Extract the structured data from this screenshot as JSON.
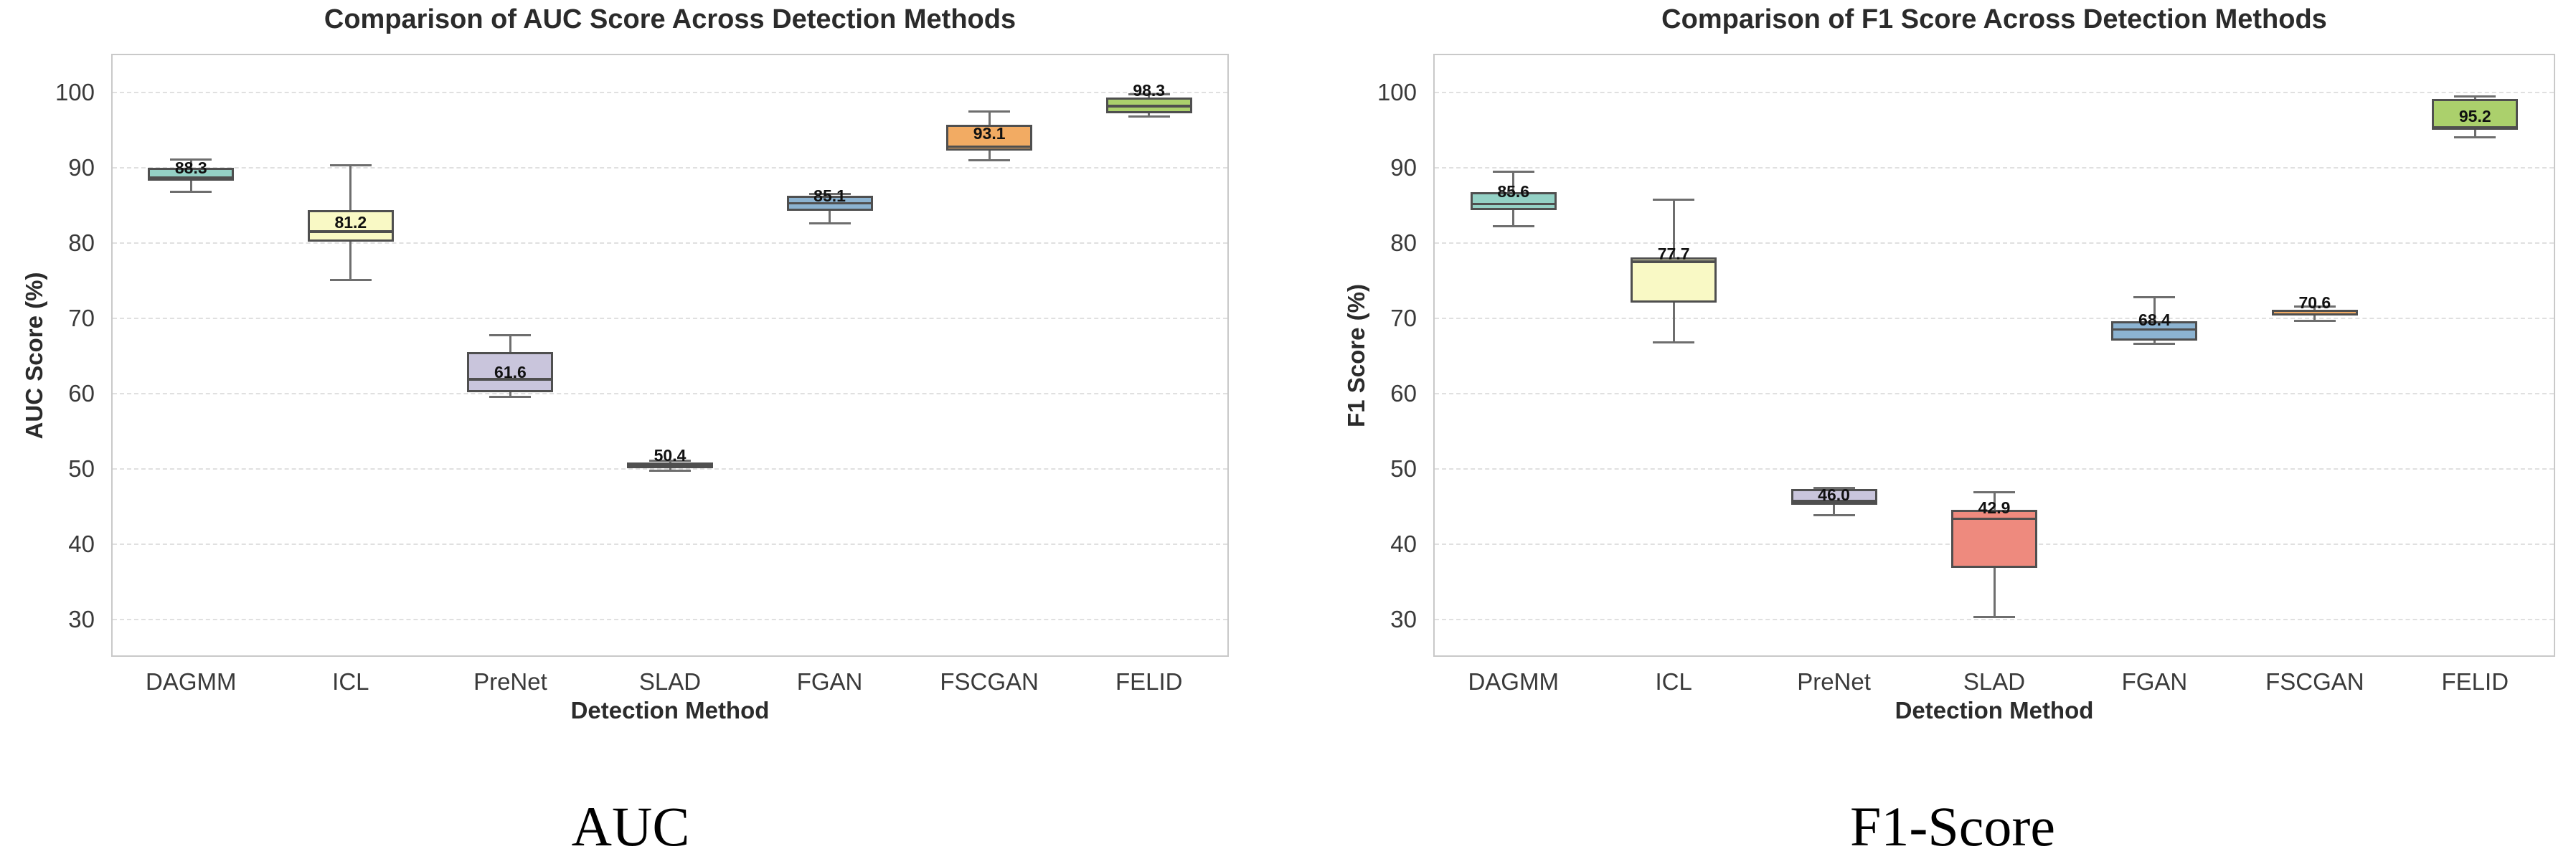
{
  "chart_data": [
    {
      "type": "box",
      "title": "Comparison of AUC Score Across Detection Methods",
      "xlabel": "Detection Method",
      "ylabel": "AUC Score (%)",
      "caption": "AUC",
      "categories": [
        "DAGMM",
        "ICL",
        "PreNet",
        "SLAD",
        "FGAN",
        "FSCGAN",
        "FELID"
      ],
      "yticks": [
        30,
        40,
        50,
        60,
        70,
        80,
        90,
        100
      ],
      "ylim": [
        25,
        105.1
      ],
      "grid": "horizontal-dashed",
      "legend": "none",
      "colors": {
        "edge": "#4f4f4f",
        "whisker": "#6e6e6e",
        "grid": "#e0e0e0",
        "spine": "#c9c9c9"
      },
      "boxes": [
        {
          "name": "DAGMM",
          "low": 86.8,
          "q1": 88.3,
          "median": 88.7,
          "q3": 90.0,
          "high": 91.1,
          "label": "88.3",
          "label_v": 90.0,
          "color": "#94d1c5"
        },
        {
          "name": "ICL",
          "low": 75.1,
          "q1": 80.2,
          "median": 81.5,
          "q3": 84.4,
          "high": 90.3,
          "label": "81.2",
          "label_v": 82.8,
          "color": "#f9f9c5"
        },
        {
          "name": "PreNet",
          "low": 59.6,
          "q1": 60.2,
          "median": 61.9,
          "q3": 65.5,
          "high": 67.8,
          "label": "61.6",
          "label_v": 62.9,
          "color": "#c9c5dc"
        },
        {
          "name": "SLAD",
          "low": 49.8,
          "q1": 50.1,
          "median": 50.5,
          "q3": 50.9,
          "high": 51.1,
          "label": "50.4",
          "label_v": 51.8,
          "color": "#ee8a7e"
        },
        {
          "name": "FGAN",
          "low": 82.6,
          "q1": 84.3,
          "median": 85.3,
          "q3": 86.3,
          "high": 86.5,
          "label": "85.1",
          "label_v": 86.3,
          "color": "#8cb3d1"
        },
        {
          "name": "FSCGAN",
          "low": 91.0,
          "q1": 92.3,
          "median": 92.8,
          "q3": 95.7,
          "high": 97.5,
          "label": "93.1",
          "label_v": 94.6,
          "color": "#f2ab63"
        },
        {
          "name": "FELID",
          "low": 96.8,
          "q1": 97.2,
          "median": 98.2,
          "q3": 99.3,
          "high": 99.8,
          "label": "98.3",
          "label_v": 100.3,
          "color": "#abd06c"
        }
      ]
    },
    {
      "type": "box",
      "title": "Comparison of F1 Score Across Detection Methods",
      "xlabel": "Detection Method",
      "ylabel": "F1 Score (%)",
      "caption": "F1-Score",
      "categories": [
        "DAGMM",
        "ICL",
        "PreNet",
        "SLAD",
        "FGAN",
        "FSCGAN",
        "FELID"
      ],
      "yticks": [
        30,
        40,
        50,
        60,
        70,
        80,
        90,
        100
      ],
      "ylim": [
        25,
        105.1
      ],
      "grid": "horizontal-dashed",
      "legend": "none",
      "colors": {
        "edge": "#4f4f4f",
        "whisker": "#6e6e6e",
        "grid": "#e0e0e0",
        "spine": "#c9c9c9"
      },
      "boxes": [
        {
          "name": "DAGMM",
          "low": 82.2,
          "q1": 84.4,
          "median": 85.2,
          "q3": 86.8,
          "high": 89.5,
          "label": "85.6",
          "label_v": 86.9,
          "color": "#94d1c5"
        },
        {
          "name": "ICL",
          "low": 66.8,
          "q1": 72.1,
          "median": 77.5,
          "q3": 78.1,
          "high": 85.8,
          "label": "77.7",
          "label_v": 78.6,
          "color": "#f9f9c5"
        },
        {
          "name": "PreNet",
          "low": 43.9,
          "q1": 45.2,
          "median": 45.7,
          "q3": 47.3,
          "high": 47.5,
          "label": "46.0",
          "label_v": 46.6,
          "color": "#c9c5dc"
        },
        {
          "name": "SLAD",
          "low": 30.3,
          "q1": 36.9,
          "median": 43.4,
          "q3": 44.6,
          "high": 46.9,
          "label": "42.9",
          "label_v": 44.9,
          "color": "#ee8a7e"
        },
        {
          "name": "FGAN",
          "low": 66.6,
          "q1": 67.0,
          "median": 68.5,
          "q3": 69.6,
          "high": 72.8,
          "label": "68.4",
          "label_v": 69.8,
          "color": "#8cb3d1"
        },
        {
          "name": "FSCGAN",
          "low": 69.7,
          "q1": 70.4,
          "median": 70.5,
          "q3": 71.1,
          "high": 71.6,
          "label": "70.6",
          "label_v": 72.1,
          "color": "#f2ab63"
        },
        {
          "name": "FELID",
          "low": 94.0,
          "q1": 95.0,
          "median": 95.4,
          "q3": 99.1,
          "high": 99.5,
          "label": "95.2",
          "label_v": 96.9,
          "color": "#abd06c"
        }
      ]
    }
  ]
}
